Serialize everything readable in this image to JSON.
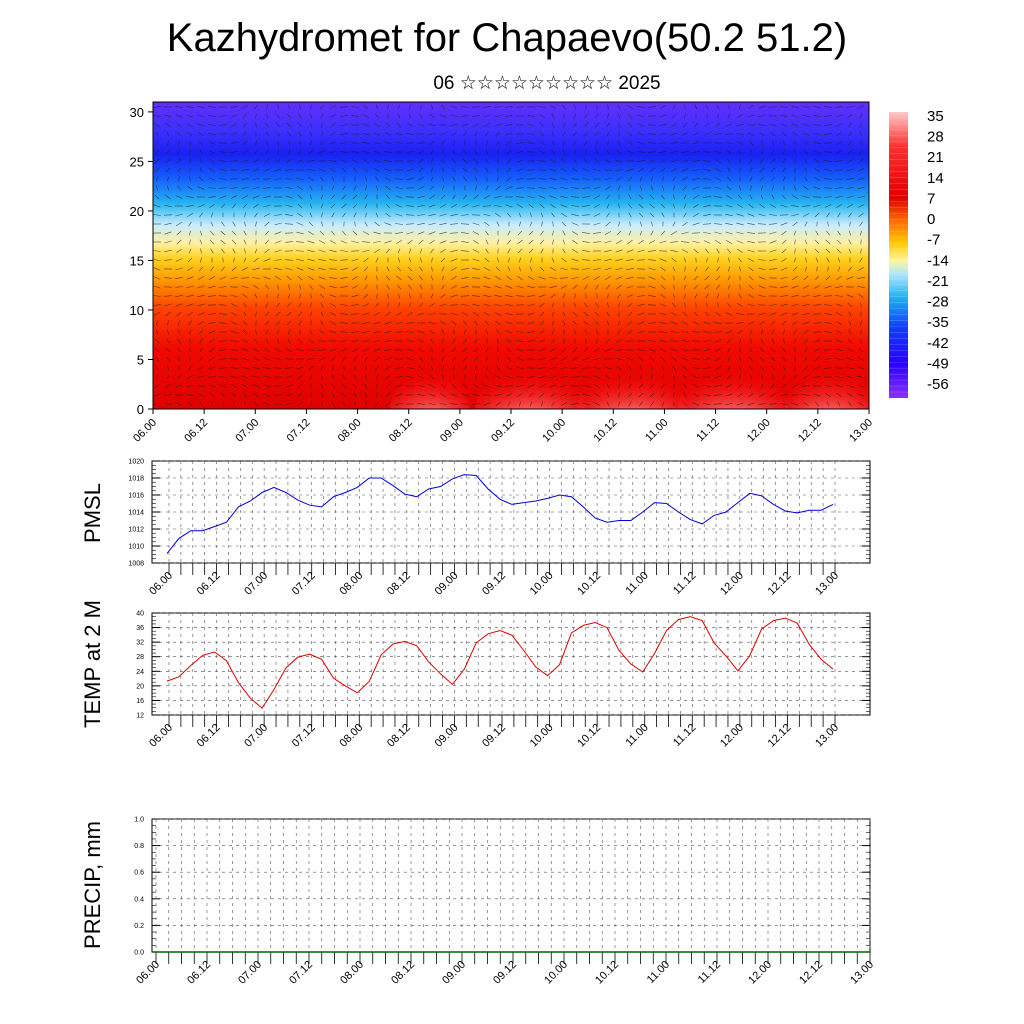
{
  "header": {
    "title": "Kazhydromet for Chapaevo(50.2 51.2)",
    "subtitle": "06 ☆☆☆☆☆☆☆☆☆ 2025"
  },
  "colors": {
    "pmsl_line": "#0000e0",
    "temp_line": "#e00000",
    "precip_line": "#006400",
    "colorbar_stops": [
      "#ffc8c8",
      "#ff3030",
      "#e00000",
      "#ff6a00",
      "#ffcc00",
      "#fff5a0",
      "#a8e4ff",
      "#20b0f0",
      "#1040ff",
      "#2800ff",
      "#8a30ff"
    ]
  },
  "chart_data": [
    {
      "type": "heatmap",
      "title": "",
      "xlabel": "",
      "ylabel": "",
      "x_ticks": [
        "06.00",
        "06.12",
        "07.00",
        "07.12",
        "08.00",
        "08.12",
        "09.00",
        "09.12",
        "10.00",
        "10.12",
        "11.00",
        "11.12",
        "12.00",
        "12.12",
        "13.00"
      ],
      "y_ticks": [
        "0",
        "5",
        "10",
        "15",
        "20",
        "25",
        "30"
      ],
      "ylim": [
        0,
        31
      ],
      "colorbar_labels": [
        "35",
        "28",
        "21",
        "14",
        "7",
        "0",
        "-7",
        "-14",
        "-21",
        "-28",
        "-35",
        "-42",
        "-49",
        "-56"
      ],
      "overlay": "wind vectors"
    },
    {
      "type": "line",
      "ylabel": "PMSL",
      "ylim": [
        1008,
        1020
      ],
      "y_ticks": [
        "1008",
        "1010",
        "1012",
        "1014",
        "1016",
        "1018",
        "1020"
      ],
      "x_ticks": [
        "06.00",
        "06.12",
        "07.00",
        "07.12",
        "08.00",
        "08.12",
        "09.00",
        "09.12",
        "10.00",
        "10.12",
        "11.00",
        "11.12",
        "12.00",
        "12.12",
        "13.00"
      ],
      "grid": true,
      "series": [
        {
          "values": [
            1009.1,
            1010.9,
            1011.8,
            1011.8,
            1012.3,
            1012.8,
            1014.6,
            1015.3,
            1016.3,
            1016.9,
            1016.3,
            1015.4,
            1014.8,
            1014.6,
            1015.8,
            1016.3,
            1016.9,
            1018.0,
            1018.0,
            1017.1,
            1016.1,
            1015.8,
            1016.7,
            1017.0,
            1017.9,
            1018.4,
            1018.3,
            1016.7,
            1015.5,
            1014.9,
            1015.1,
            1015.3,
            1015.6,
            1016.0,
            1015.8,
            1014.6,
            1013.3,
            1012.8,
            1013.0,
            1013.0,
            1014.0,
            1015.1,
            1015.0,
            1014.0,
            1013.1,
            1012.6,
            1013.6,
            1014.0,
            1015.1,
            1016.2,
            1015.9,
            1014.9,
            1014.1,
            1013.9,
            1014.2,
            1014.2,
            1014.9
          ]
        }
      ]
    },
    {
      "type": "line",
      "ylabel": "TEMP at 2 M",
      "ylim": [
        12,
        40
      ],
      "y_ticks": [
        "12",
        "16",
        "20",
        "24",
        "28",
        "32",
        "36",
        "40"
      ],
      "x_ticks": [
        "06.00",
        "06.12",
        "07.00",
        "07.12",
        "08.00",
        "08.12",
        "09.00",
        "09.12",
        "10.00",
        "10.12",
        "11.00",
        "11.12",
        "12.00",
        "12.12",
        "13.00"
      ],
      "grid": true,
      "series": [
        {
          "values": [
            21.3,
            22.5,
            25.6,
            28.4,
            29.3,
            26.9,
            20.9,
            16.6,
            13.9,
            19.0,
            24.9,
            27.9,
            28.7,
            27.3,
            22.1,
            20.0,
            18.1,
            21.2,
            28.5,
            31.5,
            32.2,
            31.0,
            26.6,
            23.3,
            20.4,
            24.6,
            31.8,
            34.3,
            35.2,
            33.9,
            29.7,
            25.2,
            22.8,
            25.8,
            34.5,
            36.6,
            37.4,
            36.0,
            29.8,
            26.0,
            23.8,
            28.9,
            35.2,
            38.2,
            39.0,
            37.9,
            31.8,
            28.2,
            24.1,
            28.3,
            35.6,
            37.9,
            38.6,
            37.2,
            31.4,
            27.3,
            24.6
          ]
        }
      ]
    },
    {
      "type": "line",
      "ylabel": "PRECIP, mm",
      "ylim": [
        0,
        1
      ],
      "y_ticks": [
        "0.0",
        "0.2",
        "0.4",
        "0.6",
        "0.8",
        "1.0"
      ],
      "x_ticks": [
        "06.00",
        "06.12",
        "07.00",
        "07.12",
        "08.00",
        "08.12",
        "09.00",
        "09.12",
        "10.00",
        "10.12",
        "11.00",
        "11.12",
        "12.00",
        "12.12",
        "13.00"
      ],
      "grid": true,
      "series": [
        {
          "values": [
            0,
            0
          ]
        }
      ]
    }
  ]
}
